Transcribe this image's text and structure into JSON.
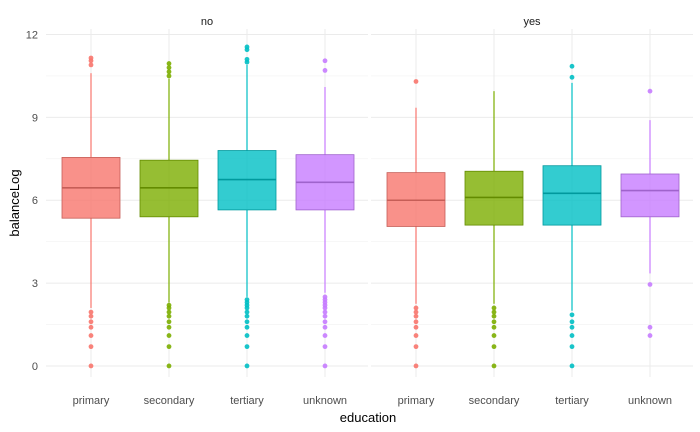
{
  "chart_data": {
    "type": "box",
    "xlabel": "education",
    "ylabel": "balanceLog",
    "categories": [
      "primary",
      "secondary",
      "tertiary",
      "unknown"
    ],
    "colors": {
      "primary": "#F8766D",
      "secondary": "#7CAE00",
      "tertiary": "#00BFC4",
      "unknown": "#C77CFF"
    },
    "ylim": [
      -0.4,
      12.2
    ],
    "yticks": [
      0,
      3,
      6,
      9,
      12
    ],
    "grid": true,
    "legend": "none",
    "facets": [
      {
        "label": "no",
        "boxes": [
          {
            "category": "primary",
            "q1": 5.35,
            "median": 6.45,
            "q3": 7.55,
            "whisker_low": 2.1,
            "whisker_high": 10.6,
            "outliers_high": [
              10.9,
              11.05,
              11.15
            ],
            "outliers_low": [
              0,
              0.7,
              1.1,
              1.4,
              1.6,
              1.8,
              1.95
            ]
          },
          {
            "category": "secondary",
            "q1": 5.4,
            "median": 6.45,
            "q3": 7.45,
            "whisker_low": 2.3,
            "whisker_high": 10.4,
            "outliers_high": [
              10.5,
              10.65,
              10.8,
              10.95
            ],
            "outliers_low": [
              0,
              0.7,
              1.1,
              1.4,
              1.6,
              1.8,
              1.95,
              2.1,
              2.2
            ]
          },
          {
            "category": "tertiary",
            "q1": 5.65,
            "median": 6.75,
            "q3": 7.8,
            "whisker_low": 2.5,
            "whisker_high": 10.9,
            "outliers_high": [
              11.0,
              11.1,
              11.45,
              11.55
            ],
            "outliers_low": [
              0,
              0.7,
              1.1,
              1.4,
              1.6,
              1.8,
              1.95,
              2.1,
              2.2,
              2.3,
              2.4
            ]
          },
          {
            "category": "unknown",
            "q1": 5.65,
            "median": 6.65,
            "q3": 7.65,
            "whisker_low": 2.65,
            "whisker_high": 10.1,
            "outliers_high": [
              10.7,
              11.05
            ],
            "outliers_low": [
              0,
              0.7,
              1.1,
              1.4,
              1.6,
              1.8,
              1.95,
              2.1,
              2.2,
              2.3,
              2.4,
              2.5
            ]
          }
        ]
      },
      {
        "label": "yes",
        "boxes": [
          {
            "category": "primary",
            "q1": 5.05,
            "median": 6.0,
            "q3": 7.0,
            "whisker_low": 2.25,
            "whisker_high": 9.35,
            "outliers_high": [
              10.3
            ],
            "outliers_low": [
              0,
              0.7,
              1.1,
              1.4,
              1.6,
              1.8,
              1.95,
              2.1
            ]
          },
          {
            "category": "secondary",
            "q1": 5.1,
            "median": 6.1,
            "q3": 7.05,
            "whisker_low": 2.25,
            "whisker_high": 9.95,
            "outliers_high": [],
            "outliers_low": [
              0,
              0.7,
              1.1,
              1.4,
              1.6,
              1.8,
              1.95,
              2.1
            ]
          },
          {
            "category": "tertiary",
            "q1": 5.1,
            "median": 6.25,
            "q3": 7.25,
            "whisker_low": 2.0,
            "whisker_high": 10.25,
            "outliers_high": [
              10.45,
              10.85
            ],
            "outliers_low": [
              0,
              0.7,
              1.1,
              1.4,
              1.6,
              1.85
            ]
          },
          {
            "category": "unknown",
            "q1": 5.4,
            "median": 6.35,
            "q3": 6.95,
            "whisker_low": 3.35,
            "whisker_high": 8.9,
            "outliers_high": [
              9.95
            ],
            "outliers_low": [
              1.1,
              1.4,
              2.95
            ]
          }
        ]
      }
    ]
  }
}
